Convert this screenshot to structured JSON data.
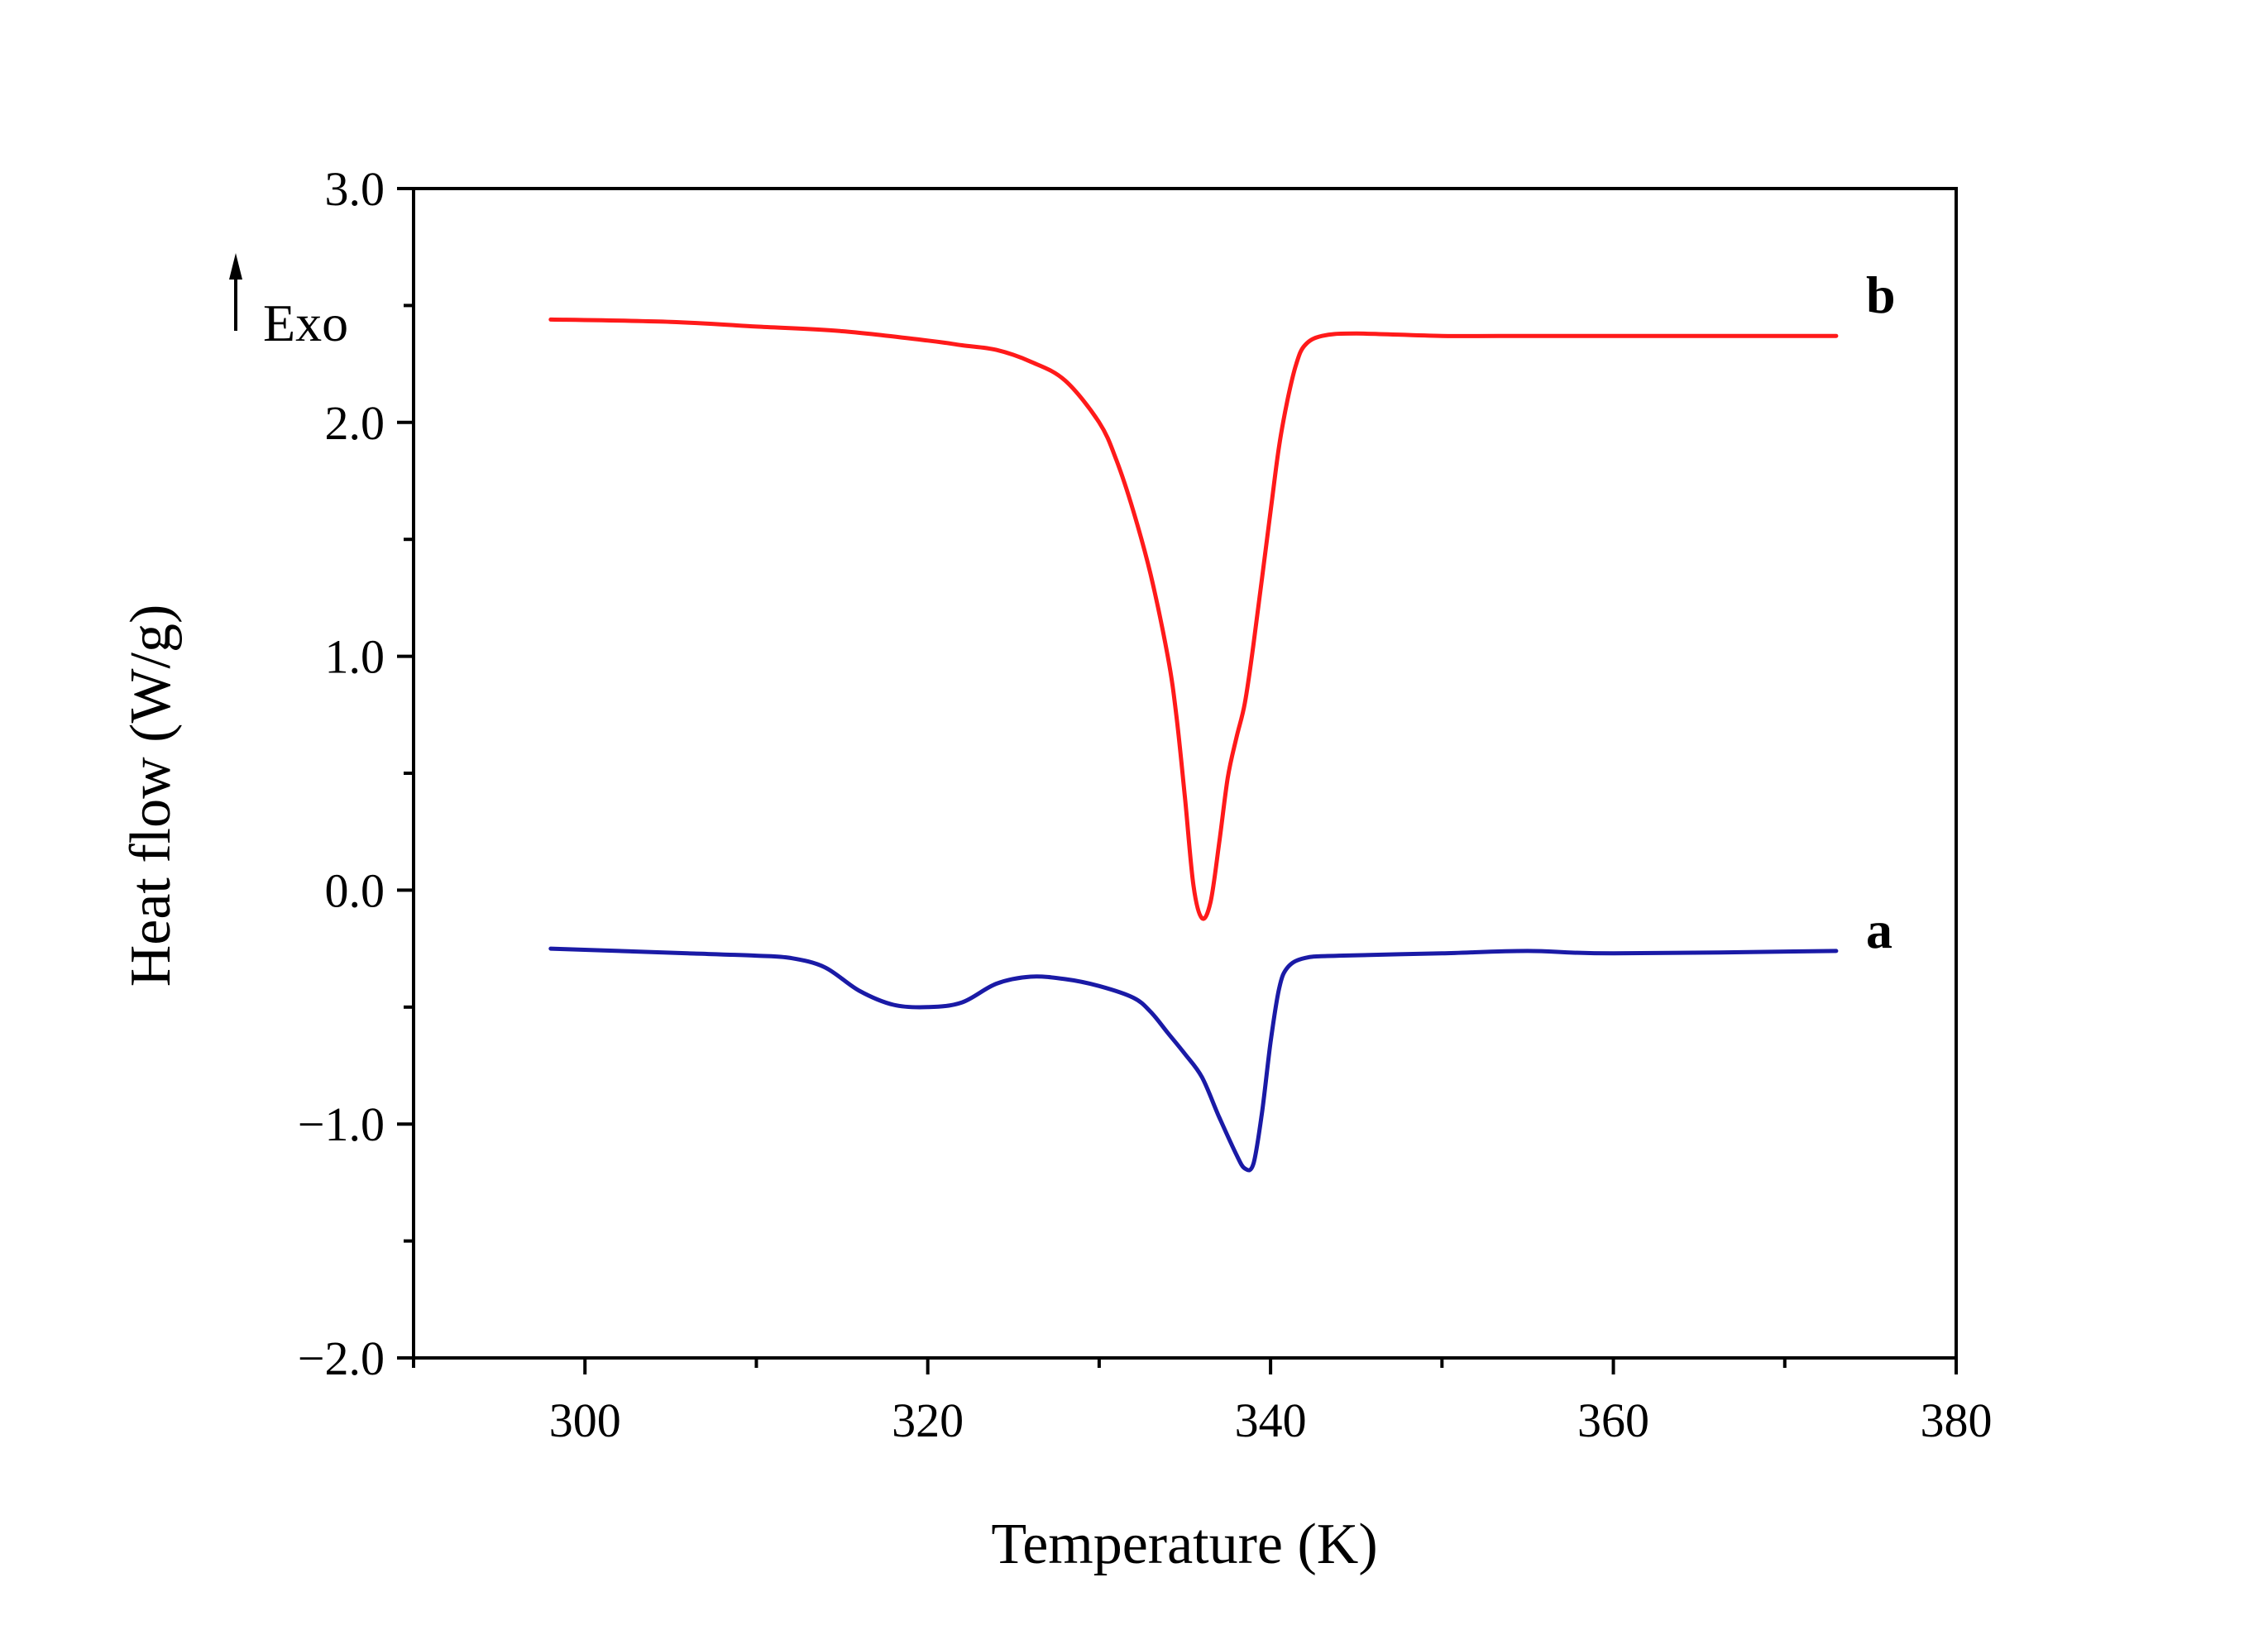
{
  "chart_data": {
    "type": "line",
    "title": "",
    "xlabel": "Temperature (K)",
    "ylabel": "Heat flow (W/g)",
    "xlim": [
      290,
      380
    ],
    "ylim": [
      -2.0,
      3.0
    ],
    "x_ticks": [
      300,
      320,
      340,
      360,
      380
    ],
    "x_tick_labels": [
      "300",
      "320",
      "340",
      "360",
      "380"
    ],
    "y_ticks": [
      -2.0,
      -1.0,
      0.0,
      1.0,
      2.0,
      3.0
    ],
    "y_tick_labels": [
      "−2.0",
      "−1.0",
      "0.0",
      "1.0",
      "2.0",
      "3.0"
    ],
    "grid": false,
    "annotation": "Exo",
    "series": [
      {
        "name": "a",
        "color": "#1a1aa6",
        "x": [
          298,
          302,
          306,
          310,
          312,
          314,
          316,
          318,
          320,
          322,
          324,
          326,
          328,
          330,
          332,
          333,
          334,
          335,
          336,
          337,
          338,
          338.5,
          339,
          339.5,
          340,
          340.5,
          341,
          342,
          344,
          350,
          355,
          360,
          373
        ],
        "y": [
          -0.25,
          -0.26,
          -0.27,
          -0.28,
          -0.29,
          -0.33,
          -0.43,
          -0.49,
          -0.5,
          -0.48,
          -0.4,
          -0.37,
          -0.38,
          -0.41,
          -0.46,
          -0.52,
          -0.61,
          -0.7,
          -0.8,
          -0.97,
          -1.13,
          -1.19,
          -1.17,
          -0.95,
          -0.65,
          -0.42,
          -0.33,
          -0.29,
          -0.28,
          -0.27,
          -0.26,
          -0.27,
          -0.26
        ]
      },
      {
        "name": "b",
        "color": "#ff1a1a",
        "x": [
          298,
          305,
          310,
          315,
          320,
          322,
          324,
          326,
          328,
          330,
          331,
          332,
          333,
          334,
          334.5,
          335,
          335.5,
          336,
          336.5,
          337,
          337.5,
          338,
          338.5,
          339,
          340,
          340.5,
          341,
          341.5,
          342,
          343,
          345,
          350,
          355,
          360,
          373
        ],
        "y": [
          2.44,
          2.43,
          2.41,
          2.39,
          2.35,
          2.33,
          2.31,
          2.26,
          2.18,
          2.0,
          1.84,
          1.62,
          1.35,
          1.0,
          0.75,
          0.4,
          0.02,
          -0.12,
          -0.05,
          0.2,
          0.48,
          0.65,
          0.8,
          1.05,
          1.62,
          1.9,
          2.1,
          2.25,
          2.33,
          2.37,
          2.38,
          2.37,
          2.37,
          2.37,
          2.37
        ]
      }
    ]
  }
}
